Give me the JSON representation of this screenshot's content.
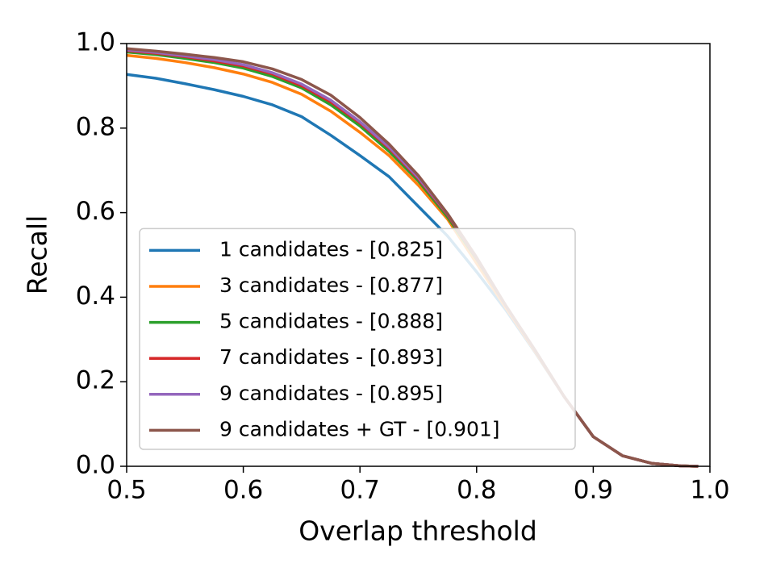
{
  "chart_data": {
    "type": "line",
    "xlabel": "Overlap threshold",
    "ylabel": "Recall",
    "x": [
      0.5,
      0.525,
      0.55,
      0.575,
      0.6,
      0.625,
      0.65,
      0.675,
      0.7,
      0.725,
      0.75,
      0.775,
      0.8,
      0.825,
      0.85,
      0.875,
      0.9,
      0.925,
      0.95,
      0.975,
      0.99
    ],
    "series": [
      {
        "name": "1 candidates - [0.825]",
        "color": "#1f77b4",
        "values": [
          0.927,
          0.918,
          0.905,
          0.891,
          0.875,
          0.855,
          0.827,
          0.783,
          0.735,
          0.685,
          0.615,
          0.545,
          0.46,
          0.37,
          0.27,
          0.165,
          0.07,
          0.025,
          0.007,
          0.001,
          0
        ]
      },
      {
        "name": "3 candidates - [0.877]",
        "color": "#ff7f0e",
        "values": [
          0.972,
          0.965,
          0.955,
          0.943,
          0.928,
          0.908,
          0.88,
          0.84,
          0.79,
          0.735,
          0.665,
          0.585,
          0.48,
          0.375,
          0.272,
          0.165,
          0.07,
          0.025,
          0.007,
          0.001,
          0
        ]
      },
      {
        "name": "5 candidates - [0.888]",
        "color": "#2ca02c",
        "values": [
          0.98,
          0.974,
          0.965,
          0.955,
          0.942,
          0.922,
          0.895,
          0.855,
          0.805,
          0.745,
          0.675,
          0.59,
          0.49,
          0.38,
          0.275,
          0.165,
          0.07,
          0.025,
          0.007,
          0.001,
          0
        ]
      },
      {
        "name": "7 candidates - [0.893]",
        "color": "#d62728",
        "values": [
          0.983,
          0.977,
          0.969,
          0.959,
          0.947,
          0.928,
          0.9,
          0.862,
          0.812,
          0.752,
          0.68,
          0.595,
          0.492,
          0.38,
          0.275,
          0.165,
          0.07,
          0.025,
          0.007,
          0.001,
          0
        ]
      },
      {
        "name": "9 candidates - [0.895]",
        "color": "#9467bd",
        "values": [
          0.985,
          0.979,
          0.971,
          0.962,
          0.95,
          0.931,
          0.904,
          0.866,
          0.815,
          0.755,
          0.683,
          0.597,
          0.494,
          0.38,
          0.275,
          0.165,
          0.07,
          0.025,
          0.007,
          0.001,
          0
        ]
      },
      {
        "name": "9 candidates + GT - [0.901]",
        "color": "#8c564b",
        "values": [
          0.988,
          0.982,
          0.975,
          0.967,
          0.957,
          0.94,
          0.915,
          0.878,
          0.825,
          0.762,
          0.688,
          0.598,
          0.494,
          0.38,
          0.275,
          0.165,
          0.07,
          0.025,
          0.007,
          0.001,
          0
        ]
      }
    ],
    "xlim": [
      0.5,
      1
    ],
    "ylim": [
      0,
      1
    ],
    "xticks": [
      0.5,
      0.6,
      0.7,
      0.8,
      0.9,
      {
        "value": 1,
        "label": "1.0"
      }
    ],
    "yticks": [
      {
        "value": 0,
        "label": "0.0"
      },
      0.2,
      0.4,
      0.6,
      0.8,
      {
        "value": 1,
        "label": "1.0"
      }
    ],
    "legend": "lower left"
  }
}
